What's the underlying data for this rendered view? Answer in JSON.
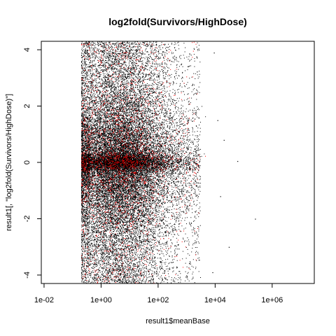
{
  "chart_data": {
    "type": "scatter",
    "title": "log2fold(Survivors/HighDose)",
    "xlabel": "result1$meanBase",
    "ylabel": "result1[, \"log2fold(Survivors/HighDose)\"]",
    "x_scale": "log10",
    "xlim": [
      0.008,
      30000000
    ],
    "ylim": [
      -4.3,
      4.3
    ],
    "x_ticks": [
      0.01,
      1,
      100,
      10000,
      1000000
    ],
    "x_tick_labels": [
      "1e-02",
      "1e+00",
      "1e+02",
      "1e+04",
      "1e+06"
    ],
    "y_ticks": [
      -4,
      -2,
      0,
      2,
      4
    ],
    "y_tick_labels": [
      "-4",
      "-2",
      "0",
      "2",
      "4"
    ],
    "grid": false,
    "legend": "none",
    "series": [
      {
        "color": "#000000",
        "x_range_approx": [
          0.2,
          3000
        ],
        "x_center_approx": 5,
        "y_range_approx": [
          -4.3,
          4.3
        ],
        "y_center": 0
      },
      {
        "color": "#ff0000",
        "x_range_approx": [
          0.2,
          3000
        ],
        "x_center_approx": 5,
        "y_range_approx": [
          -4.3,
          4.3
        ],
        "y_center": 0
      }
    ],
    "outliers": [
      {
        "x": 12000,
        "y": 1.5
      },
      {
        "x": 20000,
        "y": 0.8
      },
      {
        "x": 60000,
        "y": 0.05
      },
      {
        "x": 250000,
        "y": -2.0
      },
      {
        "x": 15000,
        "y": -1.2
      },
      {
        "x": 9000,
        "y": 3.9
      },
      {
        "x": 30000,
        "y": -3.0
      },
      {
        "x": 8000,
        "y": -3.9
      }
    ]
  }
}
